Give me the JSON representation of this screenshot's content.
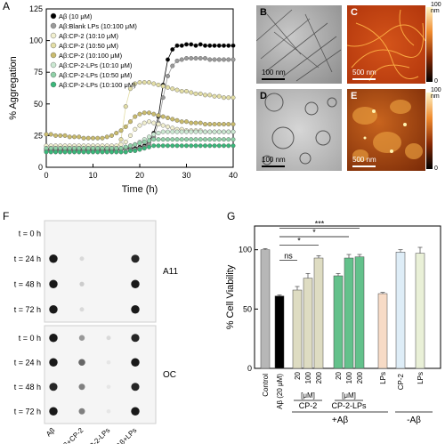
{
  "panels": {
    "A": "A",
    "B": "B",
    "C": "C",
    "D": "D",
    "E": "E",
    "F": "F",
    "G": "G"
  },
  "micrographs": {
    "B": {
      "label": "B",
      "scale": "100 nm"
    },
    "C": {
      "label": "C",
      "scale": "500 nm",
      "colorbar_top": "100 nm",
      "colorbar_bottom": "0"
    },
    "D": {
      "label": "D",
      "scale": "100 nm"
    },
    "E": {
      "label": "E",
      "scale": "500 nm",
      "colorbar_top": "100 nm",
      "colorbar_bottom": "0"
    }
  },
  "dot_blot": {
    "times": [
      "t = 0 h",
      "t = 24 h",
      "t = 48 h",
      "t = 72 h"
    ],
    "antibodies": [
      "A11",
      "OC"
    ],
    "lanes": [
      "Aβ",
      "Aβ+CP-2",
      "Aβ+CP-2-LPs",
      "Aβ+LPs"
    ],
    "intensity_A11": [
      [
        0.0,
        0.0,
        0.0,
        0.0
      ],
      [
        0.9,
        0.15,
        0.0,
        0.85
      ],
      [
        0.9,
        0.2,
        0.0,
        0.9
      ],
      [
        0.9,
        0.15,
        0.0,
        0.9
      ]
    ],
    "intensity_OC": [
      [
        0.9,
        0.4,
        0.15,
        0.85
      ],
      [
        0.9,
        0.6,
        0.1,
        0.9
      ],
      [
        0.85,
        0.5,
        0.1,
        0.85
      ],
      [
        0.9,
        0.5,
        0.1,
        0.9
      ]
    ]
  },
  "chart_data": [
    {
      "type": "line",
      "panel": "A",
      "xlabel": "Time (h)",
      "ylabel": "% Aggregation",
      "xlim": [
        0,
        40
      ],
      "ylim": [
        0,
        125
      ],
      "xticks": [
        0,
        10,
        20,
        30,
        40
      ],
      "yticks": [
        0,
        25,
        50,
        75,
        100,
        125
      ],
      "x": [
        0,
        1,
        2,
        3,
        4,
        5,
        6,
        7,
        8,
        9,
        10,
        11,
        12,
        13,
        14,
        15,
        16,
        17,
        18,
        19,
        20,
        21,
        22,
        23,
        24,
        25,
        26,
        27,
        28,
        29,
        30,
        31,
        32,
        33,
        34,
        35,
        36,
        37,
        38,
        39,
        40
      ],
      "series": [
        {
          "name": "Aβ (10 μM)",
          "color": "#000000",
          "values": [
            14,
            14,
            14,
            14,
            14,
            14,
            14,
            14,
            14,
            14,
            14,
            14,
            14,
            14,
            14,
            14,
            14,
            15,
            15,
            15,
            16,
            17,
            20,
            27,
            40,
            65,
            85,
            93,
            96,
            96,
            97,
            97,
            96,
            97,
            96,
            96,
            96,
            96,
            96,
            96,
            96
          ]
        },
        {
          "name": "Aβ:Blank LPs (10:100 μM)",
          "color": "#9a9a9a",
          "values": [
            13,
            13,
            13,
            13,
            13,
            13,
            13,
            13,
            13,
            13,
            13,
            13,
            13,
            13,
            13,
            13,
            14,
            14,
            14,
            14,
            15,
            16,
            18,
            24,
            35,
            55,
            72,
            80,
            84,
            85,
            86,
            86,
            86,
            86,
            86,
            85,
            85,
            85,
            85,
            85,
            85
          ]
        },
        {
          "name": "Aβ:CP-2 (10:10 μM)",
          "color": "#f1efcf",
          "values": [
            17,
            17,
            17,
            17,
            17,
            17,
            17,
            17,
            17,
            17,
            17,
            17,
            17,
            17,
            17,
            17,
            18,
            20,
            25,
            30,
            33,
            35,
            36,
            35,
            34,
            33,
            32,
            31,
            30,
            30,
            29,
            29,
            29,
            29,
            28,
            28,
            28,
            28,
            28,
            28,
            28
          ]
        },
        {
          "name": "Aβ:CP-2 (10:50 μM)",
          "color": "#e3dea6",
          "values": [
            15,
            15,
            15,
            15,
            15,
            15,
            15,
            15,
            15,
            15,
            15,
            15,
            15,
            15,
            15,
            15,
            22,
            48,
            62,
            66,
            67,
            67,
            67,
            66,
            65,
            64,
            63,
            62,
            61,
            60,
            60,
            59,
            58,
            58,
            57,
            57,
            56,
            56,
            55,
            55,
            55
          ]
        },
        {
          "name": "Aβ:CP-2 (10:100 μM)",
          "color": "#c9bb6e",
          "values": [
            26,
            26,
            25,
            25,
            25,
            24,
            24,
            24,
            23,
            23,
            23,
            23,
            23,
            24,
            25,
            27,
            29,
            32,
            36,
            40,
            42,
            43,
            43,
            42,
            41,
            40,
            39,
            38,
            37,
            36,
            36,
            35,
            35,
            35,
            34,
            34,
            34,
            34,
            34,
            34,
            34
          ]
        },
        {
          "name": "Aβ:CP-2-LPs (10:10 μM)",
          "color": "#cbe8d2",
          "values": [
            15,
            15,
            15,
            15,
            15,
            15,
            15,
            15,
            15,
            15,
            15,
            15,
            15,
            15,
            15,
            15,
            15,
            16,
            17,
            18,
            20,
            22,
            24,
            26,
            27,
            28,
            28,
            28,
            28,
            28,
            28,
            28,
            28,
            28,
            28,
            28,
            28,
            28,
            28,
            28,
            28
          ]
        },
        {
          "name": "Aβ:CP-2-LPs (10:50 μM)",
          "color": "#8fd0a7",
          "values": [
            15,
            15,
            15,
            15,
            15,
            15,
            15,
            15,
            15,
            15,
            15,
            15,
            15,
            15,
            15,
            15,
            15,
            16,
            17,
            18,
            19,
            20,
            21,
            22,
            22,
            22,
            22,
            22,
            22,
            22,
            22,
            22,
            22,
            22,
            22,
            22,
            22,
            22,
            22,
            22,
            22
          ]
        },
        {
          "name": "Aβ:CP-2-LPs (10:100 μM)",
          "color": "#3ab77a",
          "values": [
            12,
            12,
            12,
            12,
            12,
            12,
            12,
            12,
            12,
            12,
            12,
            12,
            12,
            12,
            12,
            12,
            12,
            12,
            13,
            13,
            14,
            15,
            16,
            17,
            17,
            17,
            17,
            17,
            17,
            17,
            17,
            17,
            17,
            17,
            17,
            17,
            17,
            17,
            17,
            17,
            17
          ]
        }
      ]
    },
    {
      "type": "bar",
      "panel": "G",
      "ylabel": "% Cell Viability",
      "ylim": [
        0,
        120
      ],
      "yticks": [
        0,
        50,
        100
      ],
      "categories": [
        "Control",
        "Aβ (20 μM)",
        "20",
        "100",
        "200",
        "20",
        "100",
        "200",
        "LPs",
        "CP-2",
        "LPs"
      ],
      "values": [
        100,
        61,
        66,
        76,
        93,
        78,
        93,
        94,
        63,
        98,
        97
      ],
      "errors": [
        1,
        1,
        3,
        4,
        2,
        2,
        3,
        2,
        1,
        2,
        5
      ],
      "colors": [
        "#b7b7b7",
        "#000000",
        "#dedcc2",
        "#dedcc2",
        "#dedcc2",
        "#63c18b",
        "#63c18b",
        "#63c18b",
        "#f7dbc6",
        "#deedf7",
        "#e9f0d7"
      ],
      "significance": [
        {
          "label": "***",
          "from": 1,
          "to": 7
        },
        {
          "label": "*",
          "from": 1,
          "to": 6
        },
        {
          "label": "*",
          "from": 1,
          "to": 4
        },
        {
          "label": "ns",
          "from": 1,
          "to": 2
        }
      ],
      "group_labels": {
        "unit": "[μM]",
        "cp2": "CP-2",
        "cp2lps": "CP-2-LPs",
        "plus_ab": "+Aβ",
        "minus_ab": "-Aβ"
      }
    }
  ]
}
